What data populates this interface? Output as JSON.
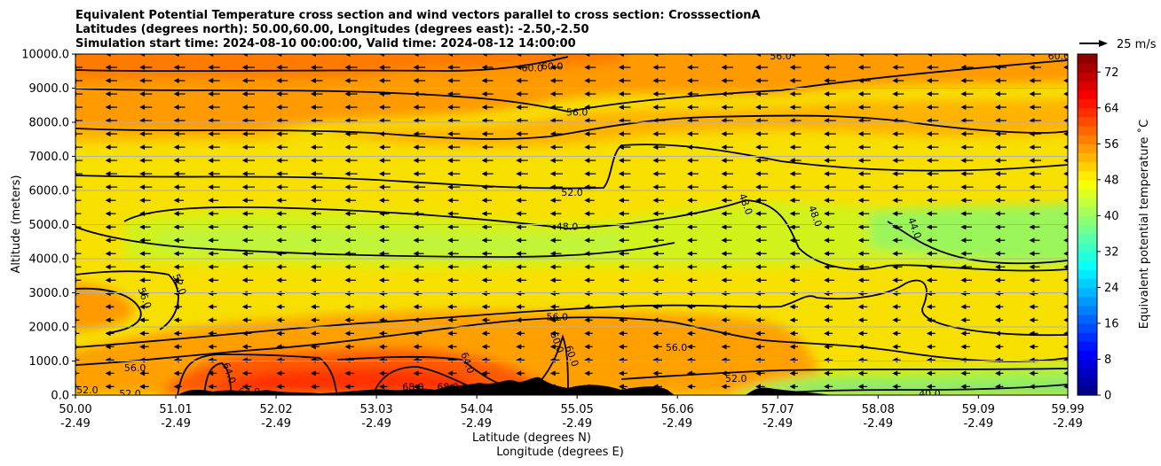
{
  "chart_data": {
    "type": "contour-cross-section",
    "title_lines": [
      "Equivalent Potential Temperature cross section and wind vectors parallel to cross section: CrosssectionA",
      "Latitudes (degrees north): 50.00,60.00, Longitudes (degrees east): -2.50,-2.50",
      "Simulation start time: 2024-08-10 00:00:00, Valid time: 2024-08-12 14:00:00"
    ],
    "xlabel_lines": [
      "Latitude (degrees N)",
      "Longitude (degrees E)"
    ],
    "ylabel": "Altitude (meters)",
    "ylim": [
      0,
      10000
    ],
    "xlim": [
      50.0,
      59.99
    ],
    "y_ticks": [
      "0.0",
      "1000.0",
      "2000.0",
      "3000.0",
      "4000.0",
      "5000.0",
      "6000.0",
      "7000.0",
      "8000.0",
      "9000.0",
      "10000.0"
    ],
    "y_tick_values": [
      0,
      1000,
      2000,
      3000,
      4000,
      5000,
      6000,
      7000,
      8000,
      9000,
      10000
    ],
    "x_ticks": [
      {
        "lat": "50.00",
        "lon": "-2.49",
        "value": 50.0
      },
      {
        "lat": "51.01",
        "lon": "-2.49",
        "value": 51.01
      },
      {
        "lat": "52.02",
        "lon": "-2.49",
        "value": 52.02
      },
      {
        "lat": "53.03",
        "lon": "-2.49",
        "value": 53.03
      },
      {
        "lat": "54.04",
        "lon": "-2.49",
        "value": 54.04
      },
      {
        "lat": "55.05",
        "lon": "-2.49",
        "value": 55.05
      },
      {
        "lat": "56.06",
        "lon": "-2.49",
        "value": 56.06
      },
      {
        "lat": "57.07",
        "lon": "-2.49",
        "value": 57.07
      },
      {
        "lat": "58.08",
        "lon": "-2.49",
        "value": 58.08
      },
      {
        "lat": "59.09",
        "lon": "-2.49",
        "value": 59.09
      },
      {
        "lat": "59.99",
        "lon": "-2.49",
        "value": 59.99
      }
    ],
    "horizontal_grid": true,
    "colorbar": {
      "label": "Equivalent potential temperature ˚C",
      "range": [
        0,
        76
      ],
      "tick_values": [
        0,
        8,
        16,
        24,
        32,
        40,
        48,
        56,
        64,
        72
      ],
      "tick_labels": [
        "0",
        "8",
        "16",
        "24",
        "32",
        "40",
        "48",
        "56",
        "64",
        "72"
      ],
      "colormap": "jet"
    },
    "quiver_key": {
      "label": "25 m/s",
      "value": 25
    },
    "wind_direction": "toward decreasing latitude",
    "contour_labels": [
      {
        "text": "60.0",
        "lat": 54.6,
        "alt": 9600
      },
      {
        "text": "60.0",
        "lat": 54.8,
        "alt": 9650
      },
      {
        "text": "56.0",
        "lat": 55.05,
        "alt": 8300
      },
      {
        "text": "52.0",
        "lat": 55.0,
        "alt": 5950
      },
      {
        "text": "48.0",
        "lat": 54.95,
        "alt": 4950
      },
      {
        "text": "48.0",
        "lat": 56.75,
        "alt": 5600,
        "rotated": true
      },
      {
        "text": "48.0",
        "lat": 57.45,
        "alt": 5250,
        "rotated": true
      },
      {
        "text": "44.0",
        "lat": 58.45,
        "alt": 4900,
        "rotated": true
      },
      {
        "text": "56.0",
        "lat": 50.7,
        "alt": 2850,
        "rotated": true
      },
      {
        "text": "52.0",
        "lat": 51.05,
        "alt": 3250,
        "rotated": true
      },
      {
        "text": "56.0",
        "lat": 54.85,
        "alt": 2300
      },
      {
        "text": "60.0",
        "lat": 54.85,
        "alt": 1550,
        "rotated": true
      },
      {
        "text": "60.0",
        "lat": 55.0,
        "alt": 1150,
        "rotated": true
      },
      {
        "text": "64.0",
        "lat": 53.95,
        "alt": 950,
        "rotated": true
      },
      {
        "text": "56.0",
        "lat": 56.05,
        "alt": 1400
      },
      {
        "text": "52.0",
        "lat": 56.65,
        "alt": 500
      },
      {
        "text": "56.0",
        "lat": 50.6,
        "alt": 800
      },
      {
        "text": "52.0",
        "lat": 50.12,
        "alt": 150
      },
      {
        "text": "52.0",
        "lat": 50.55,
        "alt": 50
      },
      {
        "text": "64.0",
        "lat": 51.55,
        "alt": 650,
        "rotated": true
      },
      {
        "text": "64.0",
        "lat": 51.75,
        "alt": 100
      },
      {
        "text": "68.0",
        "lat": 53.4,
        "alt": 250
      },
      {
        "text": "68.0",
        "lat": 53.75,
        "alt": 250
      },
      {
        "text": "56.0",
        "lat": 55.6,
        "alt": 100
      },
      {
        "text": "40.0",
        "lat": 58.6,
        "alt": 50
      },
      {
        "text": "56.0",
        "lat": 57.1,
        "alt": 9950
      },
      {
        "text": "60.0",
        "lat": 59.9,
        "alt": 9950
      }
    ]
  }
}
